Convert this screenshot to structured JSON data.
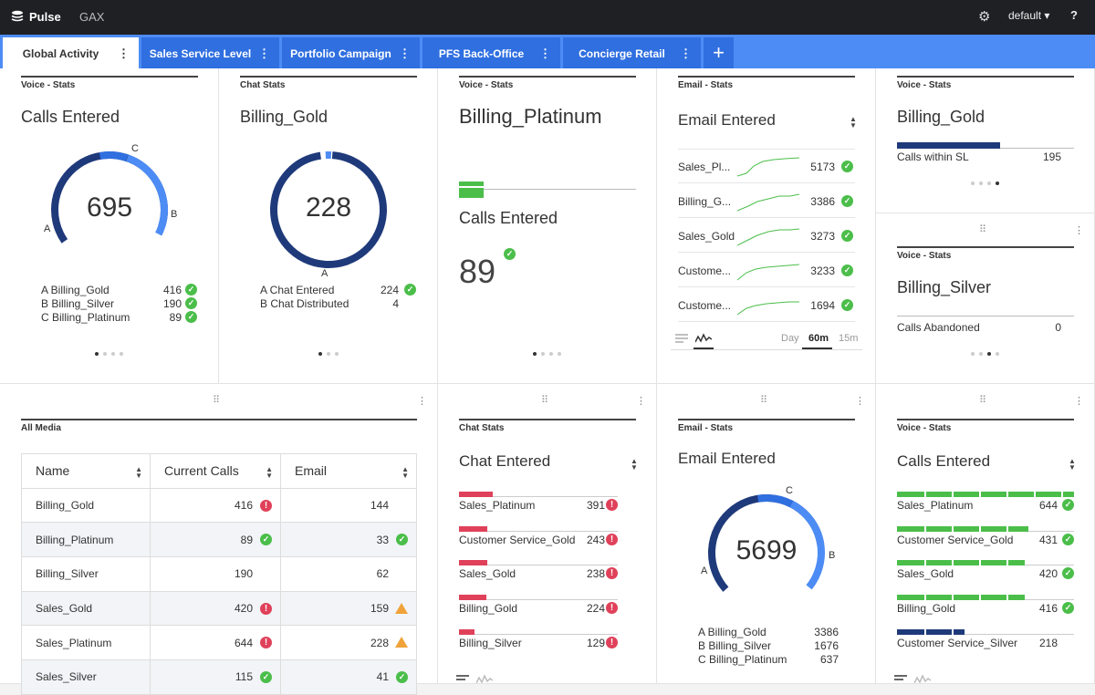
{
  "app": {
    "name": "Pulse",
    "sub": "GAX",
    "profile": "default ▾",
    "help": "?"
  },
  "tabs": [
    {
      "label": "Global Activity",
      "active": true
    },
    {
      "label": "Sales Service Level"
    },
    {
      "label": "Portfolio Campaign"
    },
    {
      "label": "PFS Back-Office"
    },
    {
      "label": "Concierge Retail"
    }
  ],
  "add_tab": "+",
  "w1": {
    "head": "Voice - Stats",
    "title": "Calls Entered",
    "total": "695",
    "labels": {
      "a": "A",
      "b": "B",
      "c": "C"
    },
    "items": [
      {
        "label": "A Billing_Gold",
        "value": "416"
      },
      {
        "label": "B Billing_Silver",
        "value": "190"
      },
      {
        "label": "C Billing_Platinum",
        "value": "89"
      }
    ]
  },
  "w2": {
    "head": "Chat Stats",
    "title": "Billing_Gold",
    "total": "228",
    "labels": {
      "a": "A"
    },
    "items": [
      {
        "label": "A Chat Entered",
        "value": "224"
      },
      {
        "label": "B Chat Distributed",
        "value": "4"
      }
    ]
  },
  "w3": {
    "head": "Voice - Stats",
    "title": "Billing_Platinum",
    "metric": "Calls Entered",
    "value": "89"
  },
  "w4": {
    "head": "Email - Stats",
    "title": "Email Entered",
    "rows": [
      {
        "label": "Sales_Pl...",
        "value": "5173"
      },
      {
        "label": "Billing_G...",
        "value": "3386"
      },
      {
        "label": "Sales_Gold",
        "value": "3273"
      },
      {
        "label": "Custome...",
        "value": "3233"
      },
      {
        "label": "Custome...",
        "value": "1694"
      }
    ],
    "ranges": [
      "Day",
      "60m",
      "15m"
    ],
    "active_range": "60m"
  },
  "w5": {
    "head": "Voice - Stats",
    "title": "Billing_Gold",
    "metric": "Calls within SL",
    "value": "195",
    "fill": 0.58
  },
  "w6": {
    "head": "Voice - Stats",
    "title": "Billing_Silver",
    "metric": "Calls Abandoned",
    "value": "0"
  },
  "w7": {
    "head": "All Media",
    "columns": [
      "Name",
      "Current Calls",
      "Email"
    ],
    "rows": [
      {
        "name": "Billing_Gold",
        "calls": "416",
        "calls_status": "err",
        "email": "144",
        "email_status": ""
      },
      {
        "name": "Billing_Platinum",
        "calls": "89",
        "calls_status": "ok",
        "email": "33",
        "email_status": "ok"
      },
      {
        "name": "Billing_Silver",
        "calls": "190",
        "calls_status": "",
        "email": "62",
        "email_status": ""
      },
      {
        "name": "Sales_Gold",
        "calls": "420",
        "calls_status": "err",
        "email": "159",
        "email_status": "warn"
      },
      {
        "name": "Sales_Platinum",
        "calls": "644",
        "calls_status": "err",
        "email": "228",
        "email_status": "warn"
      },
      {
        "name": "Sales_Silver",
        "calls": "115",
        "calls_status": "ok",
        "email": "41",
        "email_status": "ok"
      }
    ]
  },
  "w8": {
    "head": "Chat Stats",
    "title": "Chat Entered",
    "rows": [
      {
        "label": "Sales_Platinum",
        "value": "391",
        "fill": 0.21
      },
      {
        "label": "Customer Service_Gold",
        "value": "243",
        "fill": 0.18
      },
      {
        "label": "Sales_Gold",
        "value": "238",
        "fill": 0.18
      },
      {
        "label": "Billing_Gold",
        "value": "224",
        "fill": 0.17
      },
      {
        "label": "Billing_Silver",
        "value": "129",
        "fill": 0.1
      }
    ]
  },
  "w9": {
    "head": "Email - Stats",
    "title": "Email Entered",
    "total": "5699",
    "labels": {
      "a": "A",
      "b": "B",
      "c": "C"
    },
    "items": [
      {
        "label": "A Billing_Gold",
        "value": "3386"
      },
      {
        "label": "B Billing_Silver",
        "value": "1676"
      },
      {
        "label": "C Billing_Platinum",
        "value": "637"
      }
    ]
  },
  "w10": {
    "head": "Voice - Stats",
    "title": "Calls Entered",
    "rows": [
      {
        "label": "Sales_Platinum",
        "value": "644",
        "fill": 1.0,
        "color": "#4bbe4a",
        "status": "ok"
      },
      {
        "label": "Customer Service_Gold",
        "value": "431",
        "fill": 0.74,
        "color": "#4bbe4a",
        "status": "ok"
      },
      {
        "label": "Sales_Gold",
        "value": "420",
        "fill": 0.72,
        "color": "#4bbe4a",
        "status": "ok"
      },
      {
        "label": "Billing_Gold",
        "value": "416",
        "fill": 0.72,
        "color": "#4bbe4a",
        "status": "ok"
      },
      {
        "label": "Customer Service_Silver",
        "value": "218",
        "fill": 0.38,
        "color": "#1f3a7a",
        "status": ""
      }
    ]
  },
  "colors": {
    "topbar": "#1f2024",
    "tabbar": "#4d8cf5",
    "tab": "#2f6fe0",
    "ring_dark": "#1f3a7a",
    "ring_light": "#4d8cf5",
    "ok": "#4bbe4a",
    "err": "#e0415a",
    "warn": "#f0a33a"
  }
}
